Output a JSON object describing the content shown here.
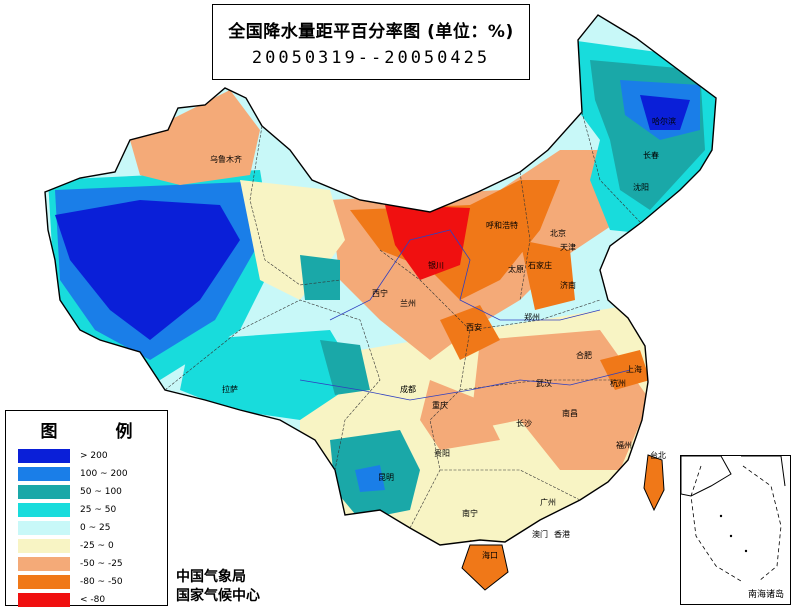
{
  "title": "全国降水量距平百分率图 (单位：%)",
  "period": "20050319--20050425",
  "legend": {
    "title": "图 例",
    "items": [
      {
        "label": "> 200",
        "color": "#0a1fd8"
      },
      {
        "label": "100 ~ 200",
        "color": "#1a7ee8"
      },
      {
        "label": "50 ~ 100",
        "color": "#1aa8a8"
      },
      {
        "label": "25 ~ 50",
        "color": "#18dcdc"
      },
      {
        "label": "0 ~ 25",
        "color": "#c8f8f8"
      },
      {
        "label": "-25 ~ 0",
        "color": "#f8f4c4"
      },
      {
        "label": "-50 ~ -25",
        "color": "#f4aa78"
      },
      {
        "label": "-80 ~ -50",
        "color": "#f07818"
      },
      {
        "label": "< -80",
        "color": "#f01010"
      }
    ]
  },
  "organizations": [
    "中国气象局",
    "国家气候中心"
  ],
  "inset_label": "南海诸岛",
  "cities": [
    "乌鲁木齐",
    "哈尔滨",
    "长春",
    "沈阳",
    "呼和浩特",
    "北京",
    "天津",
    "银川",
    "太原",
    "石家庄",
    "西宁",
    "兰州",
    "济南",
    "郑州",
    "西安",
    "合肥",
    "上海",
    "拉萨",
    "成都",
    "武汉",
    "重庆",
    "杭州",
    "长沙",
    "南昌",
    "福州",
    "贵阳",
    "昆明",
    "台北",
    "南宁",
    "广州",
    "香港",
    "澳门",
    "海口"
  ]
}
